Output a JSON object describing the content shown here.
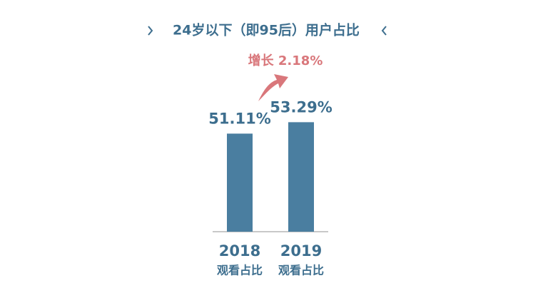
{
  "chart_data": {
    "type": "bar",
    "title": "24岁以下（即95后）用户占比",
    "annotation": "增长 2.18%",
    "categories": [
      [
        "2018",
        "观看占比"
      ],
      [
        "2019",
        "观看占比"
      ]
    ],
    "values": [
      51.11,
      53.29
    ],
    "value_labels": [
      "51.11%",
      "53.29%"
    ],
    "color": "#4a7ea0",
    "ylim": [
      32.4,
      63
    ]
  }
}
